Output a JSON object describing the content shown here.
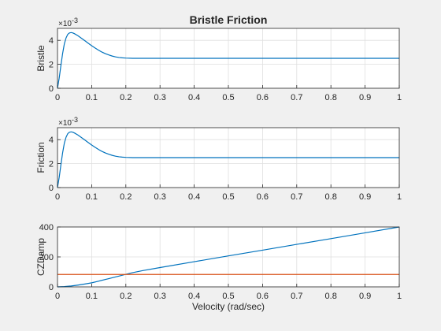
{
  "chart_data": [
    {
      "type": "line",
      "title": "Bristle Friction",
      "xlabel": "",
      "ylabel": "Bristle",
      "xlim": [
        0,
        1
      ],
      "ylim": [
        0,
        0.005
      ],
      "y_multiplier_label": "×10",
      "y_multiplier_exponent": "-3",
      "xticks": [
        "0",
        "0.1",
        "0.2",
        "0.3",
        "0.4",
        "0.5",
        "0.6",
        "0.7",
        "0.8",
        "0.9",
        "1"
      ],
      "yticks": [
        "0",
        "2",
        "4"
      ],
      "yticks_values": [
        0,
        0.002,
        0.004
      ],
      "grid": true,
      "series": [
        {
          "color": "#0072BD",
          "x": [
            0,
            0.005,
            0.01,
            0.015,
            0.02,
            0.025,
            0.03,
            0.035,
            0.04,
            0.045,
            0.05,
            0.06,
            0.07,
            0.08,
            0.09,
            0.1,
            0.11,
            0.12,
            0.13,
            0.14,
            0.15,
            0.16,
            0.17,
            0.18,
            0.19,
            0.2,
            0.22,
            0.24,
            0.26,
            0.28,
            0.3,
            0.35,
            0.4,
            0.5,
            0.6,
            0.7,
            0.8,
            0.9,
            1.0
          ],
          "y": [
            0,
            0.00085,
            0.0019,
            0.0029,
            0.0037,
            0.0042,
            0.0045,
            0.00462,
            0.00465,
            0.00462,
            0.00455,
            0.00438,
            0.00418,
            0.00397,
            0.00376,
            0.00355,
            0.00336,
            0.00318,
            0.00302,
            0.00289,
            0.00278,
            0.00269,
            0.00262,
            0.00257,
            0.00254,
            0.00252,
            0.0025,
            0.0025,
            0.0025,
            0.0025,
            0.0025,
            0.0025,
            0.0025,
            0.0025,
            0.0025,
            0.0025,
            0.0025,
            0.0025,
            0.0025
          ]
        }
      ]
    },
    {
      "type": "line",
      "title": "",
      "xlabel": "",
      "ylabel": "Friction",
      "xlim": [
        0,
        1
      ],
      "ylim": [
        0,
        0.005
      ],
      "y_multiplier_label": "×10",
      "y_multiplier_exponent": "-3",
      "xticks": [
        "0",
        "0.1",
        "0.2",
        "0.3",
        "0.4",
        "0.5",
        "0.6",
        "0.7",
        "0.8",
        "0.9",
        "1"
      ],
      "yticks": [
        "0",
        "2",
        "4"
      ],
      "yticks_values": [
        0,
        0.002,
        0.004
      ],
      "grid": true,
      "series": [
        {
          "color": "#0072BD",
          "x": [
            0,
            0.005,
            0.01,
            0.015,
            0.02,
            0.025,
            0.03,
            0.035,
            0.04,
            0.045,
            0.05,
            0.06,
            0.07,
            0.08,
            0.09,
            0.1,
            0.11,
            0.12,
            0.13,
            0.14,
            0.15,
            0.16,
            0.17,
            0.18,
            0.19,
            0.2,
            0.22,
            0.24,
            0.26,
            0.28,
            0.3,
            0.35,
            0.4,
            0.5,
            0.6,
            0.7,
            0.8,
            0.9,
            1.0
          ],
          "y": [
            0,
            0.00085,
            0.0019,
            0.0029,
            0.0037,
            0.0042,
            0.0045,
            0.00462,
            0.00465,
            0.00462,
            0.00455,
            0.00438,
            0.00418,
            0.00397,
            0.00376,
            0.00355,
            0.00336,
            0.00318,
            0.00302,
            0.00289,
            0.00278,
            0.00269,
            0.00262,
            0.00257,
            0.00254,
            0.00252,
            0.0025,
            0.0025,
            0.0025,
            0.0025,
            0.0025,
            0.0025,
            0.0025,
            0.0025,
            0.0025,
            0.0025,
            0.0025,
            0.0025,
            0.0025
          ]
        }
      ]
    },
    {
      "type": "line",
      "title": "",
      "xlabel": "Velocity (rad/sec)",
      "ylabel": "CZDamp",
      "xlim": [
        0,
        1
      ],
      "ylim": [
        0,
        400
      ],
      "xticks": [
        "0",
        "0.1",
        "0.2",
        "0.3",
        "0.4",
        "0.5",
        "0.6",
        "0.7",
        "0.8",
        "0.9",
        "1"
      ],
      "yticks": [
        "0",
        "200",
        "400"
      ],
      "yticks_values": [
        0,
        200,
        400
      ],
      "grid": true,
      "series": [
        {
          "color": "#0072BD",
          "x": [
            0,
            0.02,
            0.04,
            0.06,
            0.08,
            0.1,
            0.12,
            0.15,
            0.18,
            0.2,
            0.22,
            0.25,
            0.3,
            0.4,
            0.5,
            0.6,
            0.7,
            0.8,
            0.9,
            1.0
          ],
          "y": [
            0,
            2,
            6,
            12,
            19,
            27,
            38,
            55,
            72,
            84,
            95,
            109,
            129,
            168,
            207,
            245,
            284,
            322,
            361,
            400
          ]
        },
        {
          "color": "#D95319",
          "x": [
            0,
            1
          ],
          "y": [
            83,
            83
          ]
        }
      ]
    }
  ]
}
